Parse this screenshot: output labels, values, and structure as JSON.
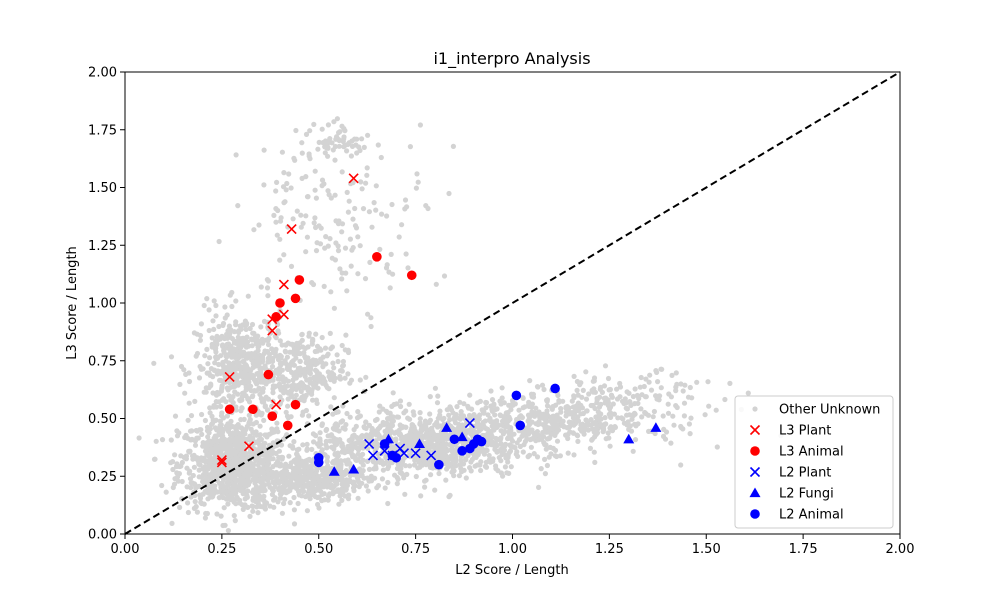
{
  "chart_data": {
    "type": "scatter",
    "title": "i1_interpro Analysis",
    "xlabel": "L2 Score / Length",
    "ylabel": "L3 Score / Length",
    "xlim": [
      0,
      2
    ],
    "ylim": [
      0,
      2
    ],
    "xticks": [
      "0.00",
      "0.25",
      "0.50",
      "0.75",
      "1.00",
      "1.25",
      "1.50",
      "1.75",
      "2.00"
    ],
    "yticks": [
      "0.00",
      "0.25",
      "0.50",
      "0.75",
      "1.00",
      "1.25",
      "1.50",
      "1.75",
      "2.00"
    ],
    "grid": false,
    "legend_position": "bottom-right",
    "reference_line": {
      "x": [
        0,
        2
      ],
      "y": [
        0,
        2
      ],
      "style": "dashed",
      "color": "#000000"
    },
    "background_series": {
      "name": "Other Unknown",
      "color": "#d3d3d3",
      "marker": "circle",
      "clusters": [
        {
          "center": [
            0.28,
            0.3
          ],
          "spread": [
            0.07,
            0.1
          ],
          "count": 900
        },
        {
          "center": [
            0.3,
            0.72
          ],
          "spread": [
            0.06,
            0.12
          ],
          "count": 500
        },
        {
          "center": [
            0.45,
            0.7
          ],
          "spread": [
            0.06,
            0.08
          ],
          "count": 300
        },
        {
          "center": [
            0.48,
            0.24
          ],
          "spread": [
            0.07,
            0.05
          ],
          "count": 400
        },
        {
          "center": [
            0.75,
            0.38
          ],
          "spread": [
            0.14,
            0.07
          ],
          "count": 900
        },
        {
          "center": [
            1.05,
            0.48
          ],
          "spread": [
            0.15,
            0.06
          ],
          "count": 500
        },
        {
          "center": [
            1.3,
            0.58
          ],
          "spread": [
            0.12,
            0.06
          ],
          "count": 150
        },
        {
          "center": [
            0.55,
            1.4
          ],
          "spread": [
            0.12,
            0.2
          ],
          "count": 180
        },
        {
          "center": [
            0.55,
            1.7
          ],
          "spread": [
            0.03,
            0.03
          ],
          "count": 40
        }
      ]
    },
    "series": [
      {
        "name": "L3 Plant",
        "color": "#ff0000",
        "marker": "x",
        "points": [
          [
            0.59,
            1.54
          ],
          [
            0.43,
            1.32
          ],
          [
            0.41,
            1.08
          ],
          [
            0.41,
            0.95
          ],
          [
            0.38,
            0.93
          ],
          [
            0.38,
            0.88
          ],
          [
            0.27,
            0.68
          ],
          [
            0.39,
            0.56
          ],
          [
            0.32,
            0.38
          ],
          [
            0.25,
            0.32
          ],
          [
            0.25,
            0.31
          ]
        ]
      },
      {
        "name": "L3 Animal",
        "color": "#ff0000",
        "marker": "circle",
        "points": [
          [
            0.65,
            1.2
          ],
          [
            0.74,
            1.12
          ],
          [
            0.45,
            1.1
          ],
          [
            0.44,
            1.02
          ],
          [
            0.4,
            1.0
          ],
          [
            0.39,
            0.94
          ],
          [
            0.37,
            0.69
          ],
          [
            0.27,
            0.54
          ],
          [
            0.33,
            0.54
          ],
          [
            0.44,
            0.56
          ],
          [
            0.38,
            0.51
          ],
          [
            0.42,
            0.47
          ]
        ]
      },
      {
        "name": "L2 Plant",
        "color": "#0000ff",
        "marker": "x",
        "points": [
          [
            0.63,
            0.39
          ],
          [
            0.64,
            0.34
          ],
          [
            0.67,
            0.36
          ],
          [
            0.69,
            0.34
          ],
          [
            0.71,
            0.37
          ],
          [
            0.72,
            0.35
          ],
          [
            0.75,
            0.35
          ],
          [
            0.79,
            0.34
          ],
          [
            0.89,
            0.48
          ]
        ]
      },
      {
        "name": "L2 Fungi",
        "color": "#0000ff",
        "marker": "triangle",
        "points": [
          [
            0.54,
            0.27
          ],
          [
            0.59,
            0.28
          ],
          [
            0.68,
            0.41
          ],
          [
            0.76,
            0.39
          ],
          [
            0.83,
            0.46
          ],
          [
            0.87,
            0.42
          ],
          [
            1.3,
            0.41
          ],
          [
            1.37,
            0.46
          ]
        ]
      },
      {
        "name": "L2 Animal",
        "color": "#0000ff",
        "marker": "circle",
        "points": [
          [
            0.5,
            0.33
          ],
          [
            0.5,
            0.31
          ],
          [
            0.67,
            0.39
          ],
          [
            0.69,
            0.34
          ],
          [
            0.7,
            0.33
          ],
          [
            0.81,
            0.3
          ],
          [
            0.85,
            0.41
          ],
          [
            0.87,
            0.36
          ],
          [
            0.89,
            0.37
          ],
          [
            0.9,
            0.39
          ],
          [
            0.91,
            0.41
          ],
          [
            0.92,
            0.4
          ],
          [
            1.01,
            0.6
          ],
          [
            1.02,
            0.47
          ],
          [
            1.11,
            0.63
          ]
        ]
      }
    ]
  }
}
